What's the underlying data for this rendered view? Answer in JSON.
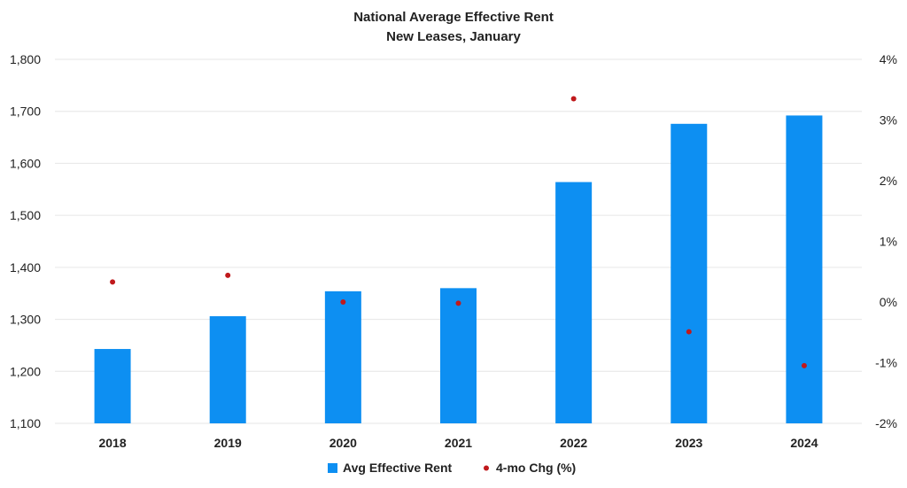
{
  "chart_data": {
    "type": "bar",
    "title": "National Average Effective Rent",
    "subtitle": "New Leases, January",
    "categories": [
      "2018",
      "2019",
      "2020",
      "2021",
      "2022",
      "2023",
      "2024"
    ],
    "series": [
      {
        "name": "Avg Effective Rent",
        "type": "bar",
        "axis": "left",
        "color": "#0d8ff2",
        "values": [
          1243,
          1306,
          1354,
          1360,
          1564,
          1676,
          1692
        ]
      },
      {
        "name": "4-mo Chg (%)",
        "type": "scatter",
        "axis": "right",
        "color": "#c0191c",
        "values": [
          0.33,
          0.44,
          0.0,
          -0.02,
          3.35,
          -0.49,
          -1.05
        ]
      }
    ],
    "y_left": {
      "ylim": [
        1100,
        1800
      ],
      "ticks": [
        1100,
        1200,
        1300,
        1400,
        1500,
        1600,
        1700,
        1800
      ],
      "tick_labels": [
        "1,100",
        "1,200",
        "1,300",
        "1,400",
        "1,500",
        "1,600",
        "1,700",
        "1,800"
      ]
    },
    "y_right": {
      "ylim": [
        -2,
        4
      ],
      "ticks": [
        -2,
        -1,
        0,
        1,
        2,
        3,
        4
      ],
      "tick_labels": [
        "-2%",
        "-1%",
        "0%",
        "1%",
        "2%",
        "3%",
        "4%"
      ]
    },
    "grid": true,
    "legend_position": "bottom"
  }
}
